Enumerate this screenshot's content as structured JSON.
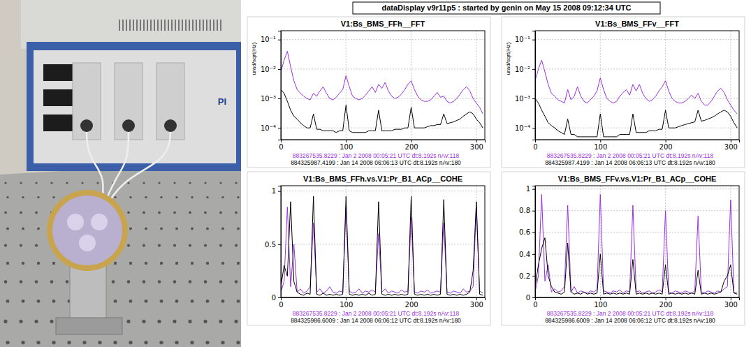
{
  "header": {
    "title": "dataDisplay v9r11p5 : started by genin on May 15 2008 09:12:34 UTC"
  },
  "photo": {
    "logo": "PI"
  },
  "chart_data": [
    {
      "type": "line",
      "title": "V1:Bs_BMS_FFh__FFT",
      "ylabel": "urad/sqrt(Hz)",
      "log": "y",
      "grid": true,
      "legend": "bottom",
      "x": [
        0,
        5,
        10,
        15,
        20,
        25,
        30,
        35,
        40,
        45,
        50,
        55,
        60,
        65,
        70,
        75,
        80,
        85,
        90,
        95,
        100,
        105,
        110,
        115,
        120,
        125,
        130,
        135,
        140,
        145,
        150,
        155,
        160,
        165,
        170,
        175,
        180,
        185,
        190,
        195,
        200,
        205,
        210,
        215,
        220,
        225,
        230,
        235,
        240,
        245,
        250,
        255,
        260,
        265,
        270,
        275,
        280,
        285,
        290,
        295,
        300,
        305,
        310
      ],
      "xlim": [
        0,
        313
      ],
      "xticks": [
        0,
        100,
        200,
        300
      ],
      "ylim": [
        4e-05,
        0.2
      ],
      "yticks": [
        {
          "value": 0.0001,
          "label": "10⁻⁴"
        },
        {
          "value": 0.001,
          "label": "10⁻³"
        },
        {
          "value": 0.01,
          "label": "10⁻²"
        },
        {
          "value": 0.1,
          "label": "10⁻¹"
        }
      ],
      "series": [
        {
          "name": "883267535.8229 : Jan 2 2008 00:05:21 UTC dt:8.192s nAv:118",
          "color": "#9a2fe0",
          "values": [
            0.008,
            0.02,
            0.04,
            0.012,
            0.004,
            0.002,
            0.0015,
            0.0012,
            0.001,
            0.0009,
            0.0015,
            0.0012,
            0.0018,
            0.0025,
            0.0015,
            0.001,
            0.0009,
            0.0011,
            0.0015,
            0.002,
            0.006,
            0.0025,
            0.0012,
            0.001,
            0.0009,
            0.001,
            0.0013,
            0.0018,
            0.0025,
            0.0016,
            0.003,
            0.0022,
            0.0035,
            0.0018,
            0.0012,
            0.001,
            0.0011,
            0.0014,
            0.002,
            0.003,
            0.004,
            0.002,
            0.0012,
            0.0009,
            0.0008,
            0.0008,
            0.0009,
            0.0012,
            0.0016,
            0.0011,
            0.0012,
            0.0008,
            0.0007,
            0.0008,
            0.001,
            0.0014,
            0.002,
            0.0025,
            0.0018,
            0.001,
            0.0007,
            0.0005,
            0.0003
          ]
        },
        {
          "name": "884325987.4199 : Jan 14 2008 06:06:13 UTC dt:8.192s nAv:180",
          "color": "#000000",
          "values": [
            0.002,
            0.0015,
            0.0008,
            0.0004,
            0.00025,
            0.0002,
            0.00015,
            0.00012,
            0.0001,
            0.0001,
            0.0003,
            9e-05,
            9e-05,
            8e-05,
            8e-05,
            8e-05,
            8e-05,
            7e-05,
            8e-05,
            8e-05,
            0.0006,
            8e-05,
            7e-05,
            7e-05,
            7e-05,
            7e-05,
            7e-05,
            8e-05,
            8e-05,
            8e-05,
            0.0004,
            8e-05,
            8e-05,
            8e-05,
            8e-05,
            9e-05,
            9e-05,
            9e-05,
            0.0001,
            0.0001,
            0.0005,
            0.0001,
            0.0001,
            0.0001,
            0.0001,
            0.00011,
            0.00012,
            0.00012,
            0.00013,
            0.00013,
            0.0003,
            0.00014,
            0.00015,
            0.00016,
            0.00018,
            0.0002,
            0.00025,
            0.0003,
            0.00035,
            0.0003,
            0.0002,
            0.00015,
            0.0001
          ]
        }
      ]
    },
    {
      "type": "line",
      "title": "V1:Bs_BMS_FFv__FFT",
      "ylabel": "urad/sqrt(Hz)",
      "log": "y",
      "grid": true,
      "legend": "bottom",
      "x": [
        0,
        5,
        10,
        15,
        20,
        25,
        30,
        35,
        40,
        45,
        50,
        55,
        60,
        65,
        70,
        75,
        80,
        85,
        90,
        95,
        100,
        105,
        110,
        115,
        120,
        125,
        130,
        135,
        140,
        145,
        150,
        155,
        160,
        165,
        170,
        175,
        180,
        185,
        190,
        195,
        200,
        205,
        210,
        215,
        220,
        225,
        230,
        235,
        240,
        245,
        250,
        255,
        260,
        265,
        270,
        275,
        280,
        285,
        290,
        295,
        300,
        305,
        310
      ],
      "xlim": [
        0,
        313
      ],
      "xticks": [
        0,
        100,
        200,
        300
      ],
      "ylim": [
        4e-05,
        0.2
      ],
      "yticks": [
        {
          "value": 0.0001,
          "label": "10⁻⁴"
        },
        {
          "value": 0.001,
          "label": "10⁻³"
        },
        {
          "value": 0.01,
          "label": "10⁻²"
        },
        {
          "value": 0.1,
          "label": "10⁻¹"
        }
      ],
      "series": [
        {
          "name": "883267535.8229 : Jan 2 2008 00:05:21 UTC dt:8.192s nAv:118",
          "color": "#9a2fe0",
          "values": [
            0.004,
            0.01,
            0.02,
            0.008,
            0.003,
            0.0015,
            0.0012,
            0.0009,
            0.0008,
            0.0007,
            0.002,
            0.0009,
            0.0012,
            0.0025,
            0.0012,
            0.0008,
            0.0007,
            0.0009,
            0.0012,
            0.0018,
            0.005,
            0.002,
            0.001,
            0.0008,
            0.0007,
            0.0008,
            0.0012,
            0.0016,
            0.002,
            0.0013,
            0.003,
            0.0018,
            0.003,
            0.0015,
            0.001,
            0.0008,
            0.0009,
            0.0012,
            0.0018,
            0.0025,
            0.004,
            0.0018,
            0.001,
            0.0008,
            0.0007,
            0.0007,
            0.0008,
            0.001,
            0.0013,
            0.001,
            0.0015,
            0.0008,
            0.0006,
            0.0006,
            0.0008,
            0.0012,
            0.0018,
            0.0022,
            0.0016,
            0.0009,
            0.0006,
            0.0004,
            0.0003
          ]
        },
        {
          "name": "884325987.4199 : Jan 14 2008 06:06:13 UTC dt:8.192s nAv:180",
          "color": "#000000",
          "values": [
            0.001,
            0.0007,
            0.0004,
            0.00025,
            0.00015,
            0.00012,
            0.0001,
            8e-05,
            7e-05,
            6e-05,
            0.0002,
            6e-05,
            6e-05,
            5e-05,
            5e-05,
            5e-05,
            5e-05,
            5e-05,
            5e-05,
            5e-05,
            0.0003,
            5e-05,
            5e-05,
            5e-05,
            5e-05,
            5e-05,
            6e-05,
            6e-05,
            6e-05,
            6e-05,
            0.0003,
            7e-05,
            7e-05,
            7e-05,
            7e-05,
            8e-05,
            8e-05,
            8e-05,
            9e-05,
            9e-05,
            0.0004,
            0.0001,
            0.0001,
            0.0001,
            0.00011,
            0.00012,
            0.00013,
            0.00014,
            0.00015,
            0.00016,
            0.0004,
            0.00017,
            0.00018,
            0.0002,
            0.00022,
            0.00025,
            0.0003,
            0.00035,
            0.0004,
            0.00035,
            0.00025,
            0.00015,
            0.0001
          ]
        }
      ]
    },
    {
      "type": "line",
      "title": "V1:Bs_BMS_FFh.vs.V1:Pr_B1_ACp__COHE",
      "grid": true,
      "legend": "bottom",
      "x": [
        0,
        5,
        10,
        15,
        20,
        25,
        30,
        35,
        40,
        45,
        50,
        55,
        60,
        65,
        70,
        75,
        80,
        85,
        90,
        95,
        100,
        105,
        110,
        115,
        120,
        125,
        130,
        135,
        140,
        145,
        150,
        155,
        160,
        165,
        170,
        175,
        180,
        185,
        190,
        195,
        200,
        205,
        210,
        215,
        220,
        225,
        230,
        235,
        240,
        245,
        250,
        255,
        260,
        265,
        270,
        275,
        280,
        285,
        290,
        295,
        300,
        305,
        310
      ],
      "xlim": [
        0,
        313
      ],
      "xticks": [
        0,
        100,
        200,
        300
      ],
      "ylim": [
        0,
        1.05
      ],
      "yticks": [
        0,
        0.5,
        1
      ],
      "series": [
        {
          "name": "883267535.8229 : Jan 2 2008 00:05:21 UTC dt:8.192s nAv:118",
          "color": "#9a2fe0",
          "values": [
            0.05,
            0.15,
            0.85,
            0.1,
            0.5,
            0.05,
            0.08,
            0.04,
            0.06,
            0.1,
            0.7,
            0.05,
            0.08,
            0.04,
            0.06,
            0.1,
            0.05,
            0.04,
            0.06,
            0.05,
            0.85,
            0.06,
            0.04,
            0.05,
            0.08,
            0.04,
            0.06,
            0.05,
            0.07,
            0.05,
            0.6,
            0.05,
            0.08,
            0.04,
            0.06,
            0.05,
            0.04,
            0.07,
            0.05,
            0.06,
            0.75,
            0.05,
            0.04,
            0.06,
            0.05,
            0.07,
            0.04,
            0.05,
            0.06,
            0.05,
            0.7,
            0.05,
            0.04,
            0.06,
            0.05,
            0.04,
            0.08,
            0.05,
            0.06,
            0.1,
            0.85,
            0.06,
            0.04
          ]
        },
        {
          "name": "884325986.6009 : Jan 14 2008 06:06:12 UTC dt:8.192s nAv:180",
          "color": "#000000",
          "values": [
            0.1,
            0.3,
            0.2,
            0.9,
            0.15,
            0.05,
            0.03,
            0.02,
            0.04,
            0.03,
            0.95,
            0.03,
            0.02,
            0.04,
            0.02,
            0.03,
            0.02,
            0.03,
            0.02,
            0.03,
            0.95,
            0.03,
            0.02,
            0.03,
            0.02,
            0.03,
            0.02,
            0.04,
            0.02,
            0.03,
            0.9,
            0.03,
            0.02,
            0.03,
            0.02,
            0.03,
            0.02,
            0.03,
            0.02,
            0.03,
            0.95,
            0.03,
            0.02,
            0.03,
            0.02,
            0.03,
            0.02,
            0.03,
            0.02,
            0.03,
            0.92,
            0.03,
            0.02,
            0.03,
            0.02,
            0.03,
            0.02,
            0.03,
            0.05,
            0.25,
            0.9,
            0.03,
            0.02
          ]
        }
      ]
    },
    {
      "type": "line",
      "title": "V1:Bs_BMS_FFv.vs.V1:Pr_B1_ACp__COHE",
      "grid": true,
      "legend": "bottom",
      "x": [
        0,
        5,
        10,
        15,
        20,
        25,
        30,
        35,
        40,
        45,
        50,
        55,
        60,
        65,
        70,
        75,
        80,
        85,
        90,
        95,
        100,
        105,
        110,
        115,
        120,
        125,
        130,
        135,
        140,
        145,
        150,
        155,
        160,
        165,
        170,
        175,
        180,
        185,
        190,
        195,
        200,
        205,
        210,
        215,
        220,
        225,
        230,
        235,
        240,
        245,
        250,
        255,
        260,
        265,
        270,
        275,
        280,
        285,
        290,
        295,
        300,
        305,
        310
      ],
      "xlim": [
        0,
        313
      ],
      "xticks": [
        0,
        100,
        200,
        300
      ],
      "ylim": [
        0,
        1.03
      ],
      "yticks": [
        0,
        0.2,
        0.4,
        0.6,
        0.8,
        1
      ],
      "series": [
        {
          "name": "883267535.8229 : Jan 2 2008 00:05:21 UTC dt:8.192s nAv:118",
          "color": "#9a2fe0",
          "values": [
            0.05,
            0.2,
            0.95,
            0.15,
            0.3,
            0.05,
            0.08,
            0.05,
            0.06,
            0.1,
            0.85,
            0.05,
            0.1,
            0.04,
            0.06,
            0.05,
            0.04,
            0.06,
            0.05,
            0.07,
            0.95,
            0.06,
            0.05,
            0.04,
            0.06,
            0.05,
            0.07,
            0.04,
            0.06,
            0.05,
            0.85,
            0.05,
            0.06,
            0.04,
            0.05,
            0.06,
            0.04,
            0.05,
            0.07,
            0.05,
            0.8,
            0.05,
            0.04,
            0.06,
            0.05,
            0.04,
            0.06,
            0.05,
            0.04,
            0.06,
            0.75,
            0.05,
            0.04,
            0.06,
            0.05,
            0.04,
            0.06,
            0.05,
            0.08,
            0.1,
            0.9,
            0.05,
            0.04
          ]
        },
        {
          "name": "884325986.6009 : Jan 14 2008 06:06:12 UTC dt:8.192s nAv:180",
          "color": "#000000",
          "values": [
            0.1,
            0.3,
            0.45,
            0.55,
            0.2,
            0.1,
            0.05,
            0.04,
            0.03,
            0.05,
            0.5,
            0.05,
            0.03,
            0.04,
            0.03,
            0.05,
            0.03,
            0.04,
            0.03,
            0.04,
            0.4,
            0.03,
            0.04,
            0.03,
            0.04,
            0.03,
            0.04,
            0.03,
            0.04,
            0.03,
            0.35,
            0.03,
            0.04,
            0.03,
            0.04,
            0.03,
            0.04,
            0.03,
            0.04,
            0.03,
            0.3,
            0.03,
            0.04,
            0.03,
            0.04,
            0.03,
            0.04,
            0.03,
            0.04,
            0.03,
            0.25,
            0.03,
            0.04,
            0.03,
            0.04,
            0.03,
            0.04,
            0.05,
            0.15,
            0.2,
            0.3,
            0.04,
            0.03
          ]
        }
      ]
    }
  ]
}
